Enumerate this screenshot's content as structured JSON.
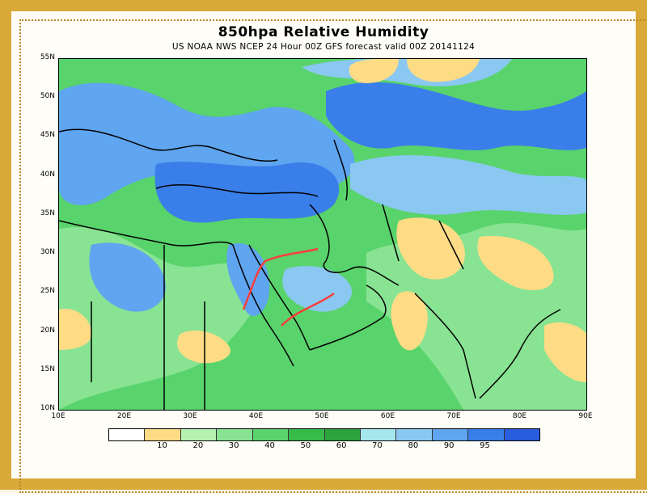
{
  "title": "850hpa Relative Humidity",
  "subtitle": "US NOAA NWS NCEP 24 Hour 00Z GFS forecast valid 00Z 20141124",
  "y_axis_labels": [
    "55N",
    "50N",
    "45N",
    "40N",
    "35N",
    "30N",
    "25N",
    "20N",
    "15N",
    "10N"
  ],
  "x_axis_labels": [
    "10E",
    "20E",
    "30E",
    "40E",
    "50E",
    "60E",
    "70E",
    "80E",
    "90E"
  ],
  "legend": {
    "colors": [
      "#ffffff",
      "#fddc85",
      "#b5f1b0",
      "#88e393",
      "#5bd36b",
      "#37bb49",
      "#2da43b",
      "#a6e7ee",
      "#8ac8f1",
      "#5fa5f0",
      "#3a7ee9",
      "#2a5dde"
    ],
    "labels": [
      "10",
      "20",
      "30",
      "40",
      "50",
      "60",
      "70",
      "80",
      "90",
      "95"
    ]
  },
  "colors": {
    "frame": "#d9a93a",
    "coastline": "#000000",
    "annotation": "#ff3d3d"
  }
}
